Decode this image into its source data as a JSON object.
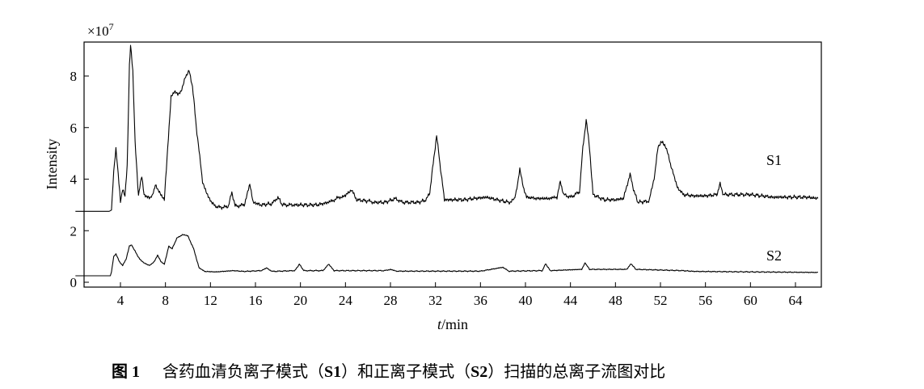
{
  "chart_data": {
    "type": "line",
    "multiplier": "×10",
    "multiplier_exp": "7",
    "xlabel_italic": "t",
    "xlabel_rest": "/min",
    "ylabel": "Intensity",
    "xlim": [
      0,
      66
    ],
    "ylim": [
      0,
      9.2
    ],
    "x_ticks": [
      4,
      8,
      12,
      16,
      20,
      24,
      28,
      32,
      36,
      40,
      44,
      48,
      52,
      56,
      60,
      64
    ],
    "y_ticks": [
      0,
      2,
      4,
      6,
      8
    ],
    "series": [
      {
        "name": "S1",
        "points": [
          [
            0,
            2.75
          ],
          [
            3.0,
            2.75
          ],
          [
            3.2,
            2.8
          ],
          [
            3.4,
            4.3
          ],
          [
            3.6,
            5.2
          ],
          [
            3.8,
            4.2
          ],
          [
            4.0,
            3.1
          ],
          [
            4.2,
            3.6
          ],
          [
            4.4,
            3.3
          ],
          [
            4.6,
            4.5
          ],
          [
            4.8,
            8.4
          ],
          [
            4.9,
            9.2
          ],
          [
            5.1,
            8.2
          ],
          [
            5.3,
            5.4
          ],
          [
            5.6,
            3.4
          ],
          [
            5.9,
            4.1
          ],
          [
            6.1,
            3.4
          ],
          [
            6.4,
            3.3
          ],
          [
            6.8,
            3.3
          ],
          [
            7.1,
            3.8
          ],
          [
            7.3,
            3.6
          ],
          [
            7.6,
            3.4
          ],
          [
            7.9,
            3.2
          ],
          [
            8.2,
            5.2
          ],
          [
            8.5,
            7.2
          ],
          [
            8.8,
            7.4
          ],
          [
            9.1,
            7.3
          ],
          [
            9.4,
            7.4
          ],
          [
            9.8,
            8.0
          ],
          [
            10.1,
            8.2
          ],
          [
            10.4,
            7.6
          ],
          [
            10.8,
            5.8
          ],
          [
            11.3,
            3.9
          ],
          [
            11.8,
            3.3
          ],
          [
            12.4,
            2.95
          ],
          [
            13.0,
            2.9
          ],
          [
            13.6,
            2.95
          ],
          [
            13.9,
            3.5
          ],
          [
            14.2,
            2.95
          ],
          [
            15.0,
            3.0
          ],
          [
            15.5,
            3.8
          ],
          [
            15.8,
            3.1
          ],
          [
            16.5,
            3.0
          ],
          [
            17.5,
            3.05
          ],
          [
            18.0,
            3.3
          ],
          [
            18.4,
            3.0
          ],
          [
            19.5,
            3.0
          ],
          [
            20.5,
            3.0
          ],
          [
            21.5,
            3.0
          ],
          [
            22.5,
            3.1
          ],
          [
            23.0,
            3.2
          ],
          [
            23.5,
            3.3
          ],
          [
            24.0,
            3.35
          ],
          [
            24.5,
            3.6
          ],
          [
            25.0,
            3.2
          ],
          [
            26.0,
            3.15
          ],
          [
            26.5,
            3.1
          ],
          [
            27.5,
            3.1
          ],
          [
            28.5,
            3.25
          ],
          [
            29.0,
            3.1
          ],
          [
            30.5,
            3.1
          ],
          [
            31.2,
            3.2
          ],
          [
            31.5,
            3.5
          ],
          [
            31.8,
            4.6
          ],
          [
            32.1,
            5.7
          ],
          [
            32.4,
            4.6
          ],
          [
            32.8,
            3.2
          ],
          [
            33.5,
            3.2
          ],
          [
            34.5,
            3.2
          ],
          [
            35.5,
            3.25
          ],
          [
            36.5,
            3.3
          ],
          [
            37.5,
            3.2
          ],
          [
            38.5,
            3.1
          ],
          [
            39.0,
            3.2
          ],
          [
            39.3,
            3.8
          ],
          [
            39.5,
            4.4
          ],
          [
            39.8,
            3.7
          ],
          [
            40.1,
            3.3
          ],
          [
            41.0,
            3.25
          ],
          [
            42.0,
            3.25
          ],
          [
            42.8,
            3.3
          ],
          [
            43.1,
            3.9
          ],
          [
            43.4,
            3.4
          ],
          [
            44.0,
            3.3
          ],
          [
            44.8,
            3.5
          ],
          [
            45.1,
            5.2
          ],
          [
            45.4,
            6.3
          ],
          [
            45.7,
            5.2
          ],
          [
            46.0,
            3.4
          ],
          [
            47.0,
            3.2
          ],
          [
            48.0,
            3.2
          ],
          [
            48.7,
            3.25
          ],
          [
            49.0,
            3.7
          ],
          [
            49.3,
            4.2
          ],
          [
            49.6,
            3.6
          ],
          [
            50.0,
            3.1
          ],
          [
            51.0,
            3.15
          ],
          [
            51.5,
            4.2
          ],
          [
            51.8,
            5.3
          ],
          [
            52.2,
            5.45
          ],
          [
            52.6,
            5.1
          ],
          [
            53.0,
            4.4
          ],
          [
            53.5,
            3.7
          ],
          [
            54.0,
            3.4
          ],
          [
            55.0,
            3.35
          ],
          [
            56.0,
            3.35
          ],
          [
            57.0,
            3.4
          ],
          [
            57.3,
            3.8
          ],
          [
            57.6,
            3.4
          ],
          [
            58.5,
            3.4
          ],
          [
            60.0,
            3.4
          ],
          [
            61.0,
            3.35
          ],
          [
            62.0,
            3.3
          ],
          [
            63.0,
            3.3
          ],
          [
            64.0,
            3.3
          ],
          [
            65.0,
            3.3
          ],
          [
            66.0,
            3.25
          ]
        ]
      },
      {
        "name": "S2",
        "points": [
          [
            0,
            0.25
          ],
          [
            3.1,
            0.25
          ],
          [
            3.2,
            0.4
          ],
          [
            3.4,
            1.0
          ],
          [
            3.6,
            1.1
          ],
          [
            3.9,
            0.8
          ],
          [
            4.2,
            0.65
          ],
          [
            4.5,
            0.9
          ],
          [
            4.8,
            1.4
          ],
          [
            5.0,
            1.45
          ],
          [
            5.3,
            1.2
          ],
          [
            5.7,
            0.9
          ],
          [
            6.1,
            0.75
          ],
          [
            6.6,
            0.65
          ],
          [
            7.0,
            0.8
          ],
          [
            7.3,
            1.05
          ],
          [
            7.6,
            0.8
          ],
          [
            7.9,
            0.7
          ],
          [
            8.3,
            1.4
          ],
          [
            8.6,
            1.3
          ],
          [
            9.0,
            1.7
          ],
          [
            9.5,
            1.85
          ],
          [
            10.0,
            1.8
          ],
          [
            10.5,
            1.3
          ],
          [
            11.0,
            0.55
          ],
          [
            11.5,
            0.42
          ],
          [
            12.5,
            0.4
          ],
          [
            14.0,
            0.45
          ],
          [
            15.0,
            0.42
          ],
          [
            16.5,
            0.45
          ],
          [
            17.0,
            0.55
          ],
          [
            17.5,
            0.42
          ],
          [
            19.5,
            0.45
          ],
          [
            19.9,
            0.7
          ],
          [
            20.3,
            0.45
          ],
          [
            22.0,
            0.45
          ],
          [
            22.5,
            0.7
          ],
          [
            23.0,
            0.45
          ],
          [
            27.5,
            0.45
          ],
          [
            28.0,
            0.5
          ],
          [
            28.5,
            0.43
          ],
          [
            36.0,
            0.43
          ],
          [
            38.0,
            0.58
          ],
          [
            38.5,
            0.43
          ],
          [
            41.5,
            0.45
          ],
          [
            41.8,
            0.72
          ],
          [
            42.2,
            0.45
          ],
          [
            45.0,
            0.5
          ],
          [
            45.3,
            0.75
          ],
          [
            45.7,
            0.5
          ],
          [
            49.0,
            0.5
          ],
          [
            49.4,
            0.72
          ],
          [
            49.8,
            0.5
          ],
          [
            54.0,
            0.45
          ],
          [
            55.0,
            0.42
          ],
          [
            66.0,
            0.38
          ]
        ]
      }
    ]
  },
  "caption": {
    "label": "图 1",
    "text_a": "含药血清负离子模式（",
    "s1": "S1",
    "text_b": "）和正离子模式（",
    "s2": "S2",
    "text_c": "）扫描的总离子流图对比"
  }
}
